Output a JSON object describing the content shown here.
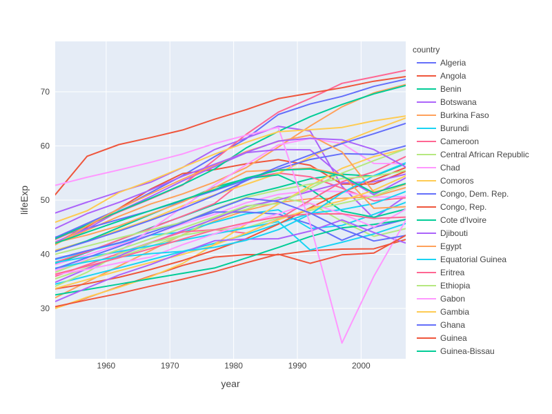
{
  "chart_data": {
    "type": "line",
    "xlabel": "year",
    "ylabel": "lifeExp",
    "xlim": [
      1952,
      2007
    ],
    "ylim": [
      20.7,
      79.3
    ],
    "xticks": [
      1960,
      1970,
      1980,
      1990,
      2000
    ],
    "yticks": [
      30,
      40,
      50,
      60,
      70
    ],
    "x": [
      1952,
      1957,
      1962,
      1967,
      1972,
      1977,
      1982,
      1987,
      1992,
      1997,
      2002,
      2007
    ],
    "legend_title": "country",
    "legend_position": "right",
    "series": [
      {
        "name": "Algeria",
        "color": "#636efa",
        "values": [
          43.08,
          45.69,
          48.3,
          51.41,
          54.52,
          58.01,
          61.37,
          65.8,
          67.74,
          69.15,
          70.99,
          72.3
        ]
      },
      {
        "name": "Angola",
        "color": "#EF553B",
        "values": [
          30.02,
          31.99,
          34.0,
          35.99,
          37.93,
          39.48,
          39.94,
          39.91,
          40.65,
          40.96,
          41.0,
          42.73
        ]
      },
      {
        "name": "Benin",
        "color": "#00cc96",
        "values": [
          38.22,
          40.36,
          42.62,
          44.89,
          47.01,
          49.19,
          50.9,
          52.34,
          53.92,
          54.78,
          54.41,
          56.73
        ]
      },
      {
        "name": "Botswana",
        "color": "#ab63fa",
        "values": [
          47.62,
          49.62,
          51.52,
          53.3,
          56.02,
          59.32,
          61.48,
          63.62,
          62.75,
          52.56,
          46.63,
          50.73
        ]
      },
      {
        "name": "Burkina Faso",
        "color": "#FFA15A",
        "values": [
          31.98,
          34.91,
          37.81,
          40.7,
          43.59,
          46.14,
          48.12,
          49.56,
          50.26,
          50.32,
          50.65,
          52.3
        ]
      },
      {
        "name": "Burundi",
        "color": "#19d3f3",
        "values": [
          39.03,
          40.53,
          42.05,
          43.55,
          44.06,
          45.91,
          47.47,
          48.21,
          44.74,
          45.33,
          47.36,
          49.58
        ]
      },
      {
        "name": "Cameroon",
        "color": "#FF6692",
        "values": [
          38.52,
          40.43,
          42.64,
          44.8,
          47.05,
          49.36,
          53.98,
          54.99,
          54.31,
          52.2,
          49.86,
          50.43
        ]
      },
      {
        "name": "Central African Republic",
        "color": "#B6E880",
        "values": [
          35.46,
          37.46,
          39.48,
          41.48,
          43.46,
          46.78,
          48.3,
          50.49,
          49.4,
          46.07,
          43.31,
          44.74
        ]
      },
      {
        "name": "Chad",
        "color": "#FF97FF",
        "values": [
          38.09,
          39.88,
          41.72,
          43.6,
          45.57,
          47.38,
          49.52,
          51.05,
          51.72,
          51.57,
          50.53,
          50.65
        ]
      },
      {
        "name": "Comoros",
        "color": "#FECB52",
        "values": [
          40.72,
          42.46,
          44.47,
          46.47,
          48.94,
          50.94,
          52.93,
          54.93,
          57.94,
          60.66,
          62.97,
          65.15
        ]
      },
      {
        "name": "Congo, Dem. Rep.",
        "color": "#636efa",
        "values": [
          39.14,
          40.65,
          42.12,
          44.06,
          45.99,
          47.8,
          47.78,
          47.41,
          45.55,
          42.59,
          44.97,
          46.46
        ]
      },
      {
        "name": "Congo, Rep.",
        "color": "#EF553B",
        "values": [
          42.11,
          45.05,
          48.44,
          52.04,
          54.91,
          55.63,
          56.7,
          57.47,
          56.43,
          52.96,
          52.97,
          55.32
        ]
      },
      {
        "name": "Cote d'Ivoire",
        "color": "#00cc96",
        "values": [
          40.48,
          42.47,
          44.93,
          47.35,
          49.8,
          52.37,
          53.98,
          54.66,
          52.04,
          47.99,
          46.83,
          48.33
        ]
      },
      {
        "name": "Djibouti",
        "color": "#ab63fa",
        "values": [
          34.81,
          37.33,
          39.69,
          42.07,
          44.37,
          46.52,
          48.81,
          50.04,
          51.6,
          53.16,
          53.37,
          54.79
        ]
      },
      {
        "name": "Egypt",
        "color": "#FFA15A",
        "values": [
          41.89,
          44.44,
          46.99,
          49.29,
          51.14,
          53.32,
          56.01,
          59.8,
          63.67,
          67.22,
          69.81,
          71.34
        ]
      },
      {
        "name": "Equatorial Guinea",
        "color": "#19d3f3",
        "values": [
          34.48,
          35.98,
          37.48,
          38.99,
          40.52,
          42.02,
          43.66,
          45.66,
          47.55,
          48.25,
          49.35,
          51.58
        ]
      },
      {
        "name": "Eritrea",
        "color": "#FF6692",
        "values": [
          35.93,
          38.05,
          40.16,
          42.19,
          44.14,
          44.54,
          43.89,
          46.45,
          49.99,
          53.38,
          55.24,
          58.04
        ]
      },
      {
        "name": "Ethiopia",
        "color": "#B6E880",
        "values": [
          34.08,
          36.67,
          40.06,
          42.12,
          43.52,
          44.51,
          44.92,
          46.68,
          48.09,
          49.4,
          50.73,
          52.95
        ]
      },
      {
        "name": "Gabon",
        "color": "#FF97FF",
        "values": [
          37.0,
          38.99,
          40.49,
          44.6,
          48.69,
          52.79,
          56.56,
          60.19,
          61.37,
          60.46,
          56.76,
          56.74
        ]
      },
      {
        "name": "Gambia",
        "color": "#FECB52",
        "values": [
          30.0,
          32.07,
          33.9,
          35.86,
          38.31,
          41.84,
          45.58,
          49.27,
          52.64,
          55.86,
          58.04,
          59.45
        ]
      },
      {
        "name": "Ghana",
        "color": "#636efa",
        "values": [
          43.15,
          44.78,
          46.45,
          48.07,
          49.88,
          51.76,
          53.74,
          55.73,
          57.5,
          58.56,
          58.45,
          60.02
        ]
      },
      {
        "name": "Guinea",
        "color": "#EF553B",
        "values": [
          33.61,
          34.56,
          35.75,
          37.2,
          38.84,
          40.76,
          42.89,
          45.55,
          48.58,
          51.46,
          53.68,
          56.01
        ]
      },
      {
        "name": "Guinea-Bissau",
        "color": "#00cc96",
        "values": [
          32.5,
          33.49,
          34.49,
          35.49,
          36.49,
          37.47,
          39.33,
          41.25,
          43.27,
          44.87,
          45.5,
          46.39
        ]
      },
      {
        "name": "",
        "color": "#ab63fa",
        "values": [
          42.27,
          44.69,
          47.95,
          50.65,
          53.56,
          56.16,
          58.77,
          59.34,
          59.29,
          54.41,
          50.99,
          54.11
        ]
      },
      {
        "name": "",
        "color": "#FFA15A",
        "values": [
          42.14,
          43.54,
          45.25,
          47.45,
          49.67,
          52.3,
          55.29,
          55.58,
          55.92,
          54.74,
          48.48,
          48.78
        ]
      },
      {
        "name": "",
        "color": "#19d3f3",
        "values": [
          38.48,
          39.49,
          40.5,
          41.54,
          42.61,
          43.76,
          44.85,
          46.03,
          40.8,
          42.22,
          43.75,
          45.68
        ]
      },
      {
        "name": "",
        "color": "#FF6692",
        "values": [
          42.72,
          45.29,
          47.81,
          50.23,
          52.77,
          57.44,
          62.16,
          66.23,
          68.76,
          71.56,
          72.74,
          73.95
        ]
      },
      {
        "name": "",
        "color": "#B6E880",
        "values": [
          36.68,
          38.87,
          40.85,
          42.88,
          44.85,
          46.88,
          48.97,
          49.35,
          52.21,
          54.98,
          57.29,
          59.44
        ]
      },
      {
        "name": "",
        "color": "#FF97FF",
        "values": [
          36.26,
          37.21,
          38.41,
          39.49,
          41.77,
          43.77,
          45.64,
          47.46,
          49.42,
          47.5,
          45.01,
          48.3
        ]
      },
      {
        "name": "",
        "color": "#FECB52",
        "values": [
          33.69,
          35.31,
          36.94,
          38.49,
          39.98,
          41.71,
          43.92,
          46.36,
          48.39,
          49.9,
          51.82,
          54.47
        ]
      },
      {
        "name": "",
        "color": "#636efa",
        "values": [
          40.54,
          42.34,
          44.25,
          46.29,
          48.44,
          50.85,
          53.6,
          56.15,
          58.33,
          60.43,
          62.25,
          64.16
        ]
      },
      {
        "name": "",
        "color": "#EF553B",
        "values": [
          50.99,
          58.09,
          60.25,
          61.56,
          62.94,
          64.93,
          66.71,
          68.74,
          69.75,
          70.74,
          71.95,
          72.8
        ]
      },
      {
        "name": "",
        "color": "#00cc96",
        "values": [
          42.87,
          45.42,
          47.92,
          50.33,
          52.86,
          55.73,
          59.65,
          62.68,
          65.39,
          67.66,
          69.62,
          71.16
        ]
      },
      {
        "name": "",
        "color": "#ab63fa",
        "values": [
          31.29,
          33.78,
          36.16,
          38.11,
          40.33,
          42.5,
          42.8,
          42.86,
          44.28,
          46.34,
          44.03,
          42.08
        ]
      },
      {
        "name": "",
        "color": "#FFA15A",
        "values": [
          41.73,
          45.23,
          48.39,
          51.16,
          53.87,
          56.44,
          58.97,
          60.84,
          61.99,
          58.91,
          51.48,
          52.91
        ]
      },
      {
        "name": "",
        "color": "#19d3f3",
        "values": [
          37.44,
          38.6,
          39.49,
          40.12,
          40.55,
          41.29,
          42.6,
          44.55,
          47.39,
          51.31,
          54.5,
          56.87
        ]
      },
      {
        "name": "",
        "color": "#FF6692",
        "values": [
          36.32,
          37.8,
          39.36,
          41.04,
          42.82,
          44.51,
          45.83,
          46.89,
          47.45,
          47.46,
          46.61,
          46.86
        ]
      },
      {
        "name": "",
        "color": "#B6E880",
        "values": [
          40.0,
          41.5,
          43.0,
          44.5,
          45.91,
          48.28,
          50.52,
          51.86,
          52.94,
          53.98,
          54.39,
          55.45
        ]
      },
      {
        "name": "",
        "color": "#FF97FF",
        "values": [
          52.72,
          54.22,
          55.57,
          56.98,
          58.52,
          60.45,
          61.98,
          63.44,
          45.6,
          23.6,
          35.93,
          46.24
        ]
      },
      {
        "name": "",
        "color": "#FECB52",
        "values": [
          45.92,
          48.02,
          51.4,
          53.61,
          56.05,
          58.48,
          60.67,
          62.63,
          62.99,
          63.42,
          64.64,
          65.53
        ]
      },
      {
        "name": "",
        "color": "#636efa",
        "values": [
          37.31,
          39.37,
          41.44,
          43.56,
          45.81,
          48.18,
          50.36,
          49.73,
          47.62,
          44.68,
          42.45,
          43.48
        ]
      },
      {
        "name": "",
        "color": "#EF553B",
        "values": [
          30.33,
          31.57,
          32.77,
          34.11,
          35.4,
          36.79,
          38.45,
          40.01,
          38.33,
          39.9,
          40.22,
          43.49
        ]
      },
      {
        "name": "",
        "color": "#00cc96",
        "values": [
          42.04,
          44.08,
          46.12,
          48.08,
          50.04,
          51.93,
          54.08,
          55.53,
          55.75,
          54.49,
          51.33,
          53.07
        ]
      },
      {
        "name": "",
        "color": "#ab63fa",
        "values": [
          44.75,
          47.5,
          49.58,
          51.89,
          54.42,
          56.61,
          58.81,
          60.91,
          61.41,
          61.13,
          59.34,
          56.12
        ]
      }
    ]
  }
}
